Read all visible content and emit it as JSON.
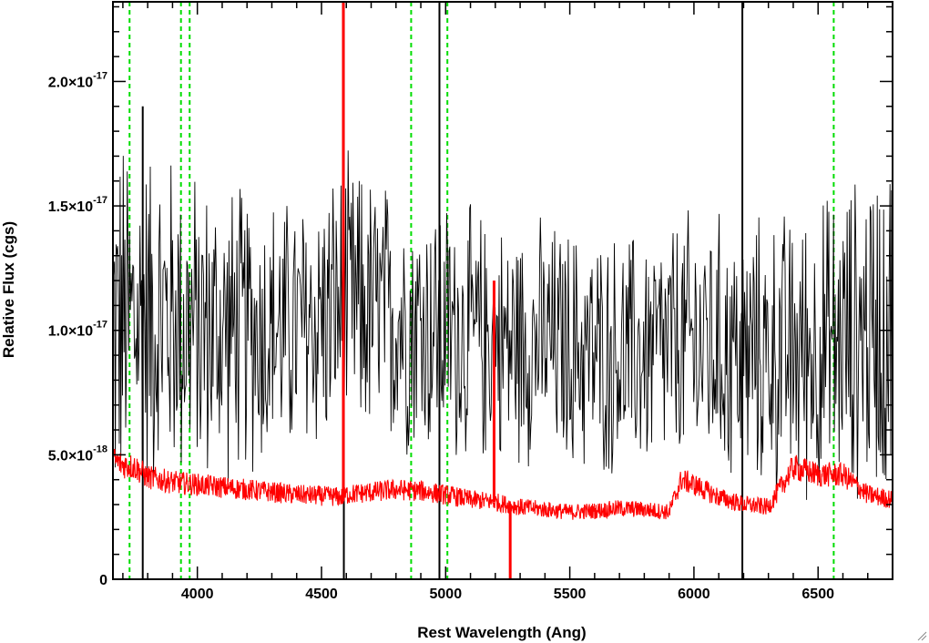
{
  "chart_data": {
    "type": "line",
    "title": "",
    "xlabel": "Rest Wavelength (Ang)",
    "ylabel": "Relative Flux (cgs)",
    "xlim": [
      3660,
      6800
    ],
    "ylim": [
      0,
      2.32e-17
    ],
    "x_ticks": [
      {
        "value": 4000,
        "label": "4000"
      },
      {
        "value": 4500,
        "label": "4500"
      },
      {
        "value": 5000,
        "label": "5000"
      },
      {
        "value": 5500,
        "label": "5500"
      },
      {
        "value": 6000,
        "label": "6000"
      },
      {
        "value": 6500,
        "label": "6500"
      }
    ],
    "x_minor_step": 100,
    "y_ticks": [
      {
        "value": 0,
        "mantissa": "0",
        "exponent": ""
      },
      {
        "value": 5e-18,
        "mantissa": "5.0×10",
        "exponent": "-18"
      },
      {
        "value": 1e-17,
        "mantissa": "1.0×10",
        "exponent": "-17"
      },
      {
        "value": 1.5e-17,
        "mantissa": "1.5×10",
        "exponent": "-17"
      },
      {
        "value": 2e-17,
        "mantissa": "2.0×10",
        "exponent": "-17"
      }
    ],
    "y_minor_step": 1e-18,
    "series": [
      {
        "color": "#000000",
        "description": "noisy observed spectrum",
        "envelope_x": [
          3660,
          3800,
          3900,
          4000,
          4200,
          4400,
          4600,
          4800,
          5000,
          5200,
          5400,
          5600,
          5800,
          6000,
          6200,
          6400,
          6600,
          6800
        ],
        "envelope_center": [
          1e-17,
          1.05e-17,
          1.05e-17,
          1e-17,
          1e-17,
          1e-17,
          1.1e-17,
          1.05e-17,
          1e-17,
          9.5e-18,
          9.5e-18,
          9e-18,
          9e-18,
          9.5e-18,
          9e-18,
          9e-18,
          9.5e-18,
          1.05e-17
        ],
        "envelope_amplitude": [
          9e-18,
          8e-18,
          7.5e-18,
          7e-18,
          6.5e-18,
          6e-18,
          6.5e-18,
          6e-18,
          6e-18,
          5.5e-18,
          5.5e-18,
          5.5e-18,
          5.5e-18,
          6e-18,
          6e-18,
          6.5e-18,
          7e-18,
          8e-18
        ],
        "spikes": [
          {
            "x": 3780,
            "low": 0,
            "high": 1.9e-17
          },
          {
            "x": 4590,
            "low": 0,
            "high": 2.32e-17
          },
          {
            "x": 4975,
            "low": 0,
            "high": 2.32e-17
          },
          {
            "x": 6195,
            "low": 0,
            "high": 2.32e-17
          }
        ]
      },
      {
        "color": "#ff0000",
        "description": "error spectrum",
        "x": [
          3660,
          3700,
          3750,
          3800,
          3900,
          4000,
          4100,
          4200,
          4300,
          4400,
          4500,
          4590,
          4600,
          4700,
          4800,
          4900,
          5000,
          5100,
          5200,
          5300,
          5400,
          5500,
          5600,
          5700,
          5800,
          5900,
          5950,
          6000,
          6100,
          6200,
          6300,
          6400,
          6500,
          6600,
          6700,
          6800
        ],
        "y": [
          4.8e-18,
          4.6e-18,
          4.5e-18,
          4.1e-18,
          3.9e-18,
          3.8e-18,
          3.7e-18,
          3.6e-18,
          3.5e-18,
          3.4e-18,
          3.35e-18,
          3.3e-18,
          3.4e-18,
          3.5e-18,
          3.6e-18,
          3.55e-18,
          3.4e-18,
          3.2e-18,
          3.1e-18,
          2.9e-18,
          2.8e-18,
          2.7e-18,
          2.75e-18,
          2.85e-18,
          2.8e-18,
          2.7e-18,
          4e-18,
          3.8e-18,
          3.3e-18,
          3e-18,
          2.9e-18,
          4.5e-18,
          4.2e-18,
          4.2e-18,
          3.4e-18,
          3.2e-18
        ],
        "spikes": [
          {
            "x": 4588,
            "low": 3.3e-18,
            "high": 2.32e-17
          },
          {
            "x": 5195,
            "low": 3.1e-18,
            "high": 1.2e-17
          },
          {
            "x": 5260,
            "low": 0,
            "high": 2.9e-18
          }
        ]
      }
    ],
    "reference_lines": {
      "color": "#00dd00",
      "style": "dashed",
      "x": [
        3727,
        3934,
        3969,
        4861,
        5007,
        6563
      ]
    },
    "grid": false,
    "legend": "none"
  }
}
